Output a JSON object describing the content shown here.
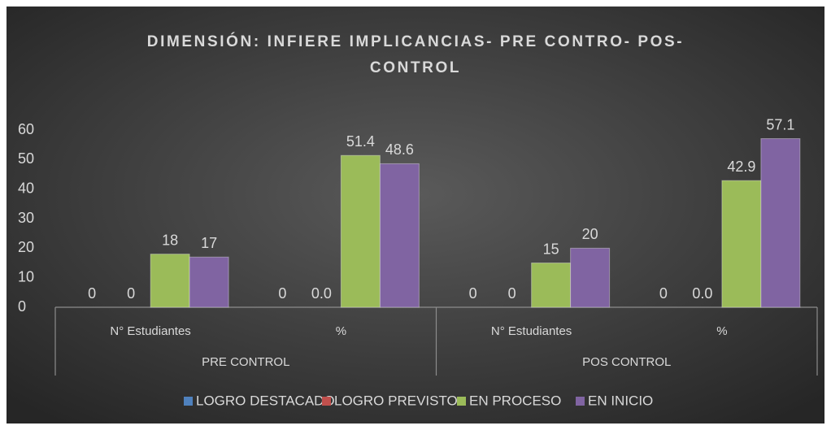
{
  "chart_data": {
    "type": "bar",
    "title": "DIMENSIÓN: INFIERE IMPLICANCIAS- PRE CONTRO- POS-CONTROL",
    "groups": [
      {
        "label": "PRE CONTROL",
        "categories": [
          "N° Estudiantes",
          "%"
        ]
      },
      {
        "label": "POS CONTROL",
        "categories": [
          "N° Estudiantes",
          "%"
        ]
      }
    ],
    "series": [
      {
        "name": "LOGRO DESTACADO",
        "color": "#4f81bd",
        "values": [
          0,
          0,
          0,
          0
        ]
      },
      {
        "name": "LOGRO PREVISTO",
        "color": "#c0504d",
        "values": [
          0,
          0,
          0,
          0
        ],
        "value_labels": [
          "0",
          "0.0",
          "0",
          "0.0"
        ]
      },
      {
        "name": "EN PROCESO",
        "color": "#9bbb59",
        "values": [
          18,
          51.4,
          15,
          42.9
        ]
      },
      {
        "name": "EN INICIO",
        "color": "#8064a2",
        "values": [
          17,
          48.6,
          20,
          57.1
        ]
      }
    ],
    "ylim": [
      0,
      60
    ],
    "yticks": [
      0,
      10,
      20,
      30,
      40,
      50,
      60
    ],
    "grid": false,
    "legend": "bottom"
  }
}
